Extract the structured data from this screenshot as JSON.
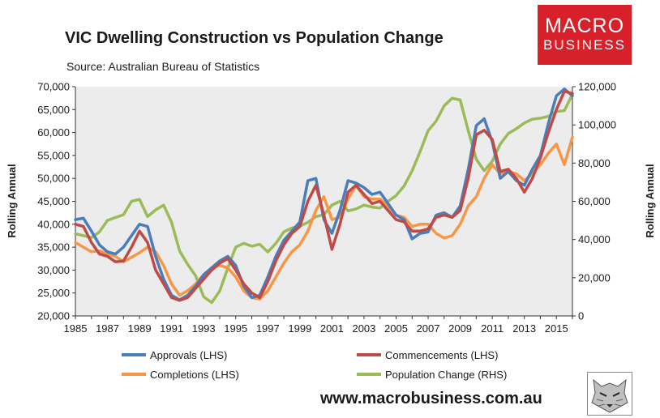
{
  "header": {
    "title": "VIC Dwelling Construction vs Population Change",
    "source": "Source: Australian Bureau of Statistics"
  },
  "logo": {
    "line1": "MACRO",
    "line2": "BUSINESS",
    "color": "#d6202a"
  },
  "footer": {
    "website": "www.macrobusiness.com.au"
  },
  "chart_data": {
    "type": "line",
    "title": "VIC Dwelling Construction vs Population Change",
    "xlim": [
      1985,
      2016
    ],
    "x_ticks": [
      "1985",
      "1987",
      "1989",
      "1991",
      "1993",
      "1995",
      "1997",
      "1999",
      "2001",
      "2003",
      "2005",
      "2007",
      "2009",
      "2011",
      "2013",
      "2015"
    ],
    "y_left": {
      "label": "Rolling Annual",
      "range": [
        20000,
        70000
      ],
      "ticks": [
        "20,000",
        "25,000",
        "30,000",
        "35,000",
        "40,000",
        "45,000",
        "50,000",
        "55,000",
        "60,000",
        "65,000",
        "70,000"
      ]
    },
    "y_right": {
      "label": "Rolling Annual",
      "range": [
        0,
        120000
      ],
      "ticks": [
        "0",
        "20,000",
        "40,000",
        "60,000",
        "80,000",
        "100,000",
        "120,000"
      ]
    },
    "plot_background": "#ececec",
    "legend_position": "bottom",
    "series": [
      {
        "name": "Approvals (LHS)",
        "axis": "left",
        "color": "#4a7ebb",
        "points": [
          [
            1985,
            41000
          ],
          [
            1985.5,
            41300
          ],
          [
            1986,
            38500
          ],
          [
            1986.5,
            35500
          ],
          [
            1987,
            34000
          ],
          [
            1987.5,
            33500
          ],
          [
            1988,
            35000
          ],
          [
            1988.5,
            37500
          ],
          [
            1989,
            40000
          ],
          [
            1989.5,
            39500
          ],
          [
            1990,
            33000
          ],
          [
            1990.5,
            28000
          ],
          [
            1991,
            24500
          ],
          [
            1991.5,
            23500
          ],
          [
            1992,
            24500
          ],
          [
            1992.5,
            26500
          ],
          [
            1993,
            29000
          ],
          [
            1993.5,
            30500
          ],
          [
            1994,
            32000
          ],
          [
            1994.5,
            33000
          ],
          [
            1995,
            31000
          ],
          [
            1995.5,
            26500
          ],
          [
            1996,
            24000
          ],
          [
            1996.5,
            24500
          ],
          [
            1997,
            28500
          ],
          [
            1997.5,
            33000
          ],
          [
            1998,
            36500
          ],
          [
            1998.5,
            38500
          ],
          [
            1999,
            40500
          ],
          [
            1999.5,
            49500
          ],
          [
            2000,
            50000
          ],
          [
            2000.5,
            41000
          ],
          [
            2001,
            38000
          ],
          [
            2001.5,
            43000
          ],
          [
            2002,
            49500
          ],
          [
            2002.5,
            49000
          ],
          [
            2003,
            48000
          ],
          [
            2003.5,
            46500
          ],
          [
            2004,
            47000
          ],
          [
            2004.5,
            44500
          ],
          [
            2005,
            42000
          ],
          [
            2005.5,
            41000
          ],
          [
            2006,
            36800
          ],
          [
            2006.5,
            38000
          ],
          [
            2007,
            38300
          ],
          [
            2007.5,
            42000
          ],
          [
            2008,
            42500
          ],
          [
            2008.5,
            41500
          ],
          [
            2009,
            44000
          ],
          [
            2009.5,
            52000
          ],
          [
            2010,
            61500
          ],
          [
            2010.5,
            63000
          ],
          [
            2011,
            58000
          ],
          [
            2011.5,
            50000
          ],
          [
            2012,
            51500
          ],
          [
            2012.5,
            49500
          ],
          [
            2013,
            48500
          ],
          [
            2013.5,
            52000
          ],
          [
            2014,
            55000
          ],
          [
            2014.5,
            62000
          ],
          [
            2015,
            68000
          ],
          [
            2015.5,
            69500
          ],
          [
            2016,
            68000
          ]
        ]
      },
      {
        "name": "Commencements (LHS)",
        "axis": "left",
        "color": "#be4b48",
        "points": [
          [
            1985,
            40000
          ],
          [
            1985.5,
            39500
          ],
          [
            1986,
            36000
          ],
          [
            1986.5,
            33500
          ],
          [
            1987,
            33000
          ],
          [
            1987.5,
            31800
          ],
          [
            1988,
            32000
          ],
          [
            1988.5,
            35000
          ],
          [
            1989,
            38500
          ],
          [
            1989.5,
            36000
          ],
          [
            1990,
            30000
          ],
          [
            1990.5,
            27000
          ],
          [
            1991,
            24000
          ],
          [
            1991.5,
            23400
          ],
          [
            1992,
            24000
          ],
          [
            1992.5,
            26000
          ],
          [
            1993,
            28000
          ],
          [
            1993.5,
            30000
          ],
          [
            1994,
            31500
          ],
          [
            1994.5,
            32500
          ],
          [
            1995,
            30000
          ],
          [
            1995.5,
            27000
          ],
          [
            1996,
            25000
          ],
          [
            1996.5,
            24000
          ],
          [
            1997,
            27500
          ],
          [
            1997.5,
            32000
          ],
          [
            1998,
            35500
          ],
          [
            1998.5,
            38000
          ],
          [
            1999,
            39500
          ],
          [
            1999.5,
            45000
          ],
          [
            2000,
            48500
          ],
          [
            2000.5,
            42000
          ],
          [
            2001,
            34500
          ],
          [
            2001.5,
            40000
          ],
          [
            2002,
            47000
          ],
          [
            2002.5,
            48500
          ],
          [
            2003,
            46500
          ],
          [
            2003.5,
            44500
          ],
          [
            2004,
            45000
          ],
          [
            2004.5,
            43000
          ],
          [
            2005,
            41000
          ],
          [
            2005.5,
            40500
          ],
          [
            2006,
            38500
          ],
          [
            2006.5,
            38500
          ],
          [
            2007,
            39000
          ],
          [
            2007.5,
            41500
          ],
          [
            2008,
            42000
          ],
          [
            2008.5,
            41500
          ],
          [
            2009,
            43000
          ],
          [
            2009.5,
            50000
          ],
          [
            2010,
            59500
          ],
          [
            2010.5,
            60500
          ],
          [
            2011,
            58500
          ],
          [
            2011.5,
            51500
          ],
          [
            2012,
            52000
          ],
          [
            2012.5,
            50000
          ],
          [
            2013,
            47000
          ],
          [
            2013.5,
            50000
          ],
          [
            2014,
            54500
          ],
          [
            2014.5,
            60000
          ],
          [
            2015,
            65000
          ],
          [
            2015.5,
            69000
          ],
          [
            2016,
            68500
          ]
        ]
      },
      {
        "name": "Completions (LHS)",
        "axis": "left",
        "color": "#f79646",
        "points": [
          [
            1985,
            36000
          ],
          [
            1985.5,
            35000
          ],
          [
            1986,
            34000
          ],
          [
            1986.5,
            34200
          ],
          [
            1987,
            33500
          ],
          [
            1987.5,
            33000
          ],
          [
            1988,
            31800
          ],
          [
            1988.5,
            32800
          ],
          [
            1989,
            33800
          ],
          [
            1989.5,
            35000
          ],
          [
            1990,
            34000
          ],
          [
            1990.5,
            31000
          ],
          [
            1991,
            27000
          ],
          [
            1991.5,
            24500
          ],
          [
            1992,
            25500
          ],
          [
            1992.5,
            27000
          ],
          [
            1993,
            29000
          ],
          [
            1993.5,
            30500
          ],
          [
            1994,
            31000
          ],
          [
            1994.5,
            30500
          ],
          [
            1995,
            28500
          ],
          [
            1995.5,
            25500
          ],
          [
            1996,
            24000
          ],
          [
            1996.5,
            23700
          ],
          [
            1997,
            25500
          ],
          [
            1997.5,
            28500
          ],
          [
            1998,
            31500
          ],
          [
            1998.5,
            34000
          ],
          [
            1999,
            35500
          ],
          [
            1999.5,
            38500
          ],
          [
            2000,
            43000
          ],
          [
            2000.5,
            46000
          ],
          [
            2001,
            41000
          ],
          [
            2001.5,
            41500
          ],
          [
            2002,
            45500
          ],
          [
            2002.5,
            48500
          ],
          [
            2003,
            46000
          ],
          [
            2003.5,
            45500
          ],
          [
            2004,
            45500
          ],
          [
            2004.5,
            44000
          ],
          [
            2005,
            42000
          ],
          [
            2005.5,
            41500
          ],
          [
            2006,
            39500
          ],
          [
            2006.5,
            40000
          ],
          [
            2007,
            40000
          ],
          [
            2007.5,
            38000
          ],
          [
            2008,
            37000
          ],
          [
            2008.5,
            37500
          ],
          [
            2009,
            40000
          ],
          [
            2009.5,
            44000
          ],
          [
            2010,
            46000
          ],
          [
            2010.5,
            50000
          ],
          [
            2011,
            53000
          ],
          [
            2011.5,
            51000
          ],
          [
            2012,
            51500
          ],
          [
            2012.5,
            51000
          ],
          [
            2013,
            49500
          ],
          [
            2013.5,
            51000
          ],
          [
            2014,
            53000
          ],
          [
            2014.5,
            55500
          ],
          [
            2015,
            57500
          ],
          [
            2015.5,
            53000
          ],
          [
            2016,
            59000
          ]
        ]
      },
      {
        "name": "Population Change (RHS)",
        "axis": "right",
        "color": "#9bbb59",
        "points": [
          [
            1985,
            43000
          ],
          [
            1985.5,
            42000
          ],
          [
            1986,
            41000
          ],
          [
            1986.5,
            44000
          ],
          [
            1987,
            50000
          ],
          [
            1987.5,
            51500
          ],
          [
            1988,
            53000
          ],
          [
            1988.5,
            60000
          ],
          [
            1989,
            61000
          ],
          [
            1989.5,
            52000
          ],
          [
            1990,
            55500
          ],
          [
            1990.5,
            58000
          ],
          [
            1991,
            49000
          ],
          [
            1991.5,
            34000
          ],
          [
            1992,
            27000
          ],
          [
            1992.5,
            21000
          ],
          [
            1993,
            10000
          ],
          [
            1993.5,
            7000
          ],
          [
            1994,
            13000
          ],
          [
            1994.5,
            25000
          ],
          [
            1995,
            36000
          ],
          [
            1995.5,
            38000
          ],
          [
            1996,
            36500
          ],
          [
            1996.5,
            37500
          ],
          [
            1997,
            33500
          ],
          [
            1997.5,
            38000
          ],
          [
            1998,
            44000
          ],
          [
            1998.5,
            46000
          ],
          [
            1999,
            47000
          ],
          [
            1999.5,
            49000
          ],
          [
            2000,
            52000
          ],
          [
            2000.5,
            53000
          ],
          [
            2001,
            58000
          ],
          [
            2001.5,
            60000
          ],
          [
            2002,
            55000
          ],
          [
            2002.5,
            56000
          ],
          [
            2003,
            58000
          ],
          [
            2003.5,
            57000
          ],
          [
            2004,
            56500
          ],
          [
            2004.5,
            60000
          ],
          [
            2005,
            63000
          ],
          [
            2005.5,
            68000
          ],
          [
            2006,
            76000
          ],
          [
            2006.5,
            86000
          ],
          [
            2007,
            97000
          ],
          [
            2007.5,
            102000
          ],
          [
            2008,
            110000
          ],
          [
            2008.5,
            114000
          ],
          [
            2009,
            113000
          ],
          [
            2009.5,
            97000
          ],
          [
            2010,
            82000
          ],
          [
            2010.5,
            76000
          ],
          [
            2011,
            81000
          ],
          [
            2011.5,
            90000
          ],
          [
            2012,
            95500
          ],
          [
            2012.5,
            98000
          ],
          [
            2013,
            101000
          ],
          [
            2013.5,
            103000
          ],
          [
            2014,
            103500
          ],
          [
            2014.5,
            104500
          ],
          [
            2015,
            107000
          ],
          [
            2015.5,
            107500
          ],
          [
            2016,
            116000
          ]
        ]
      }
    ]
  }
}
